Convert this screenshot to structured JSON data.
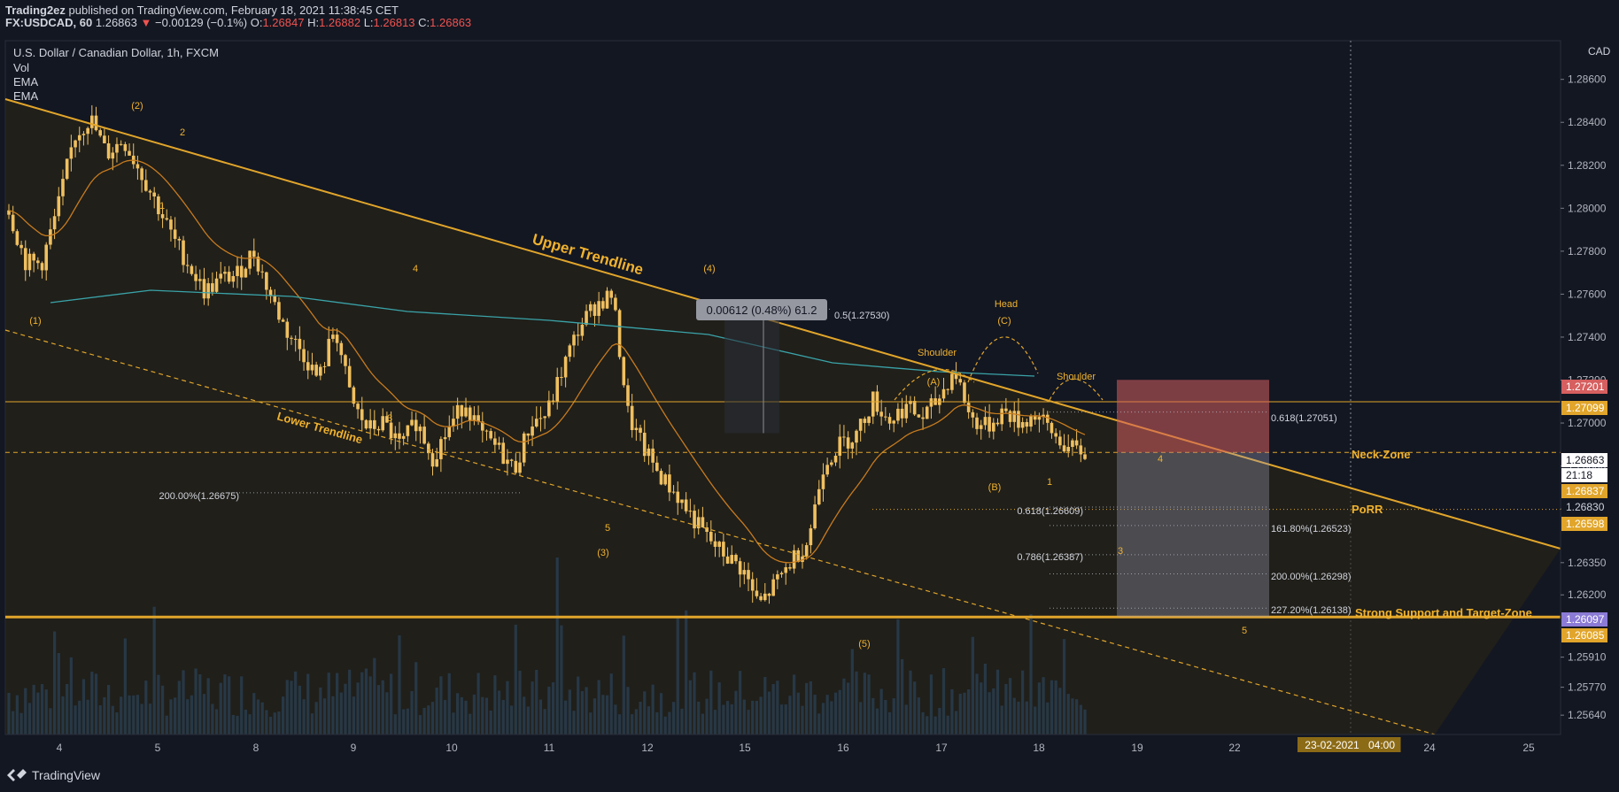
{
  "header": {
    "publisher": "Trading2ez",
    "published_text": "published on TradingView.com, February 18, 2021 11:38:45 CET",
    "symbol": "FX:USDCAD, 60",
    "last": "1.26863",
    "change": "−0.00129 (−0.1%)",
    "o_label": "O:",
    "o": "1.26847",
    "h_label": "H:",
    "h": "1.26882",
    "l_label": "L:",
    "l": "1.26813",
    "c_label": "C:",
    "c": "1.26863"
  },
  "legend": {
    "title": "U.S. Dollar / Canadian Dollar, 1h, FXCM",
    "items": [
      "Vol",
      "EMA",
      "EMA"
    ]
  },
  "footer": {
    "brand": "TradingView"
  },
  "colors": {
    "background": "#131722",
    "candle": "#f0c060",
    "trend": "#e1a52b",
    "ema_fast": "#c77b1e",
    "ema_slow": "#3aa3a8",
    "volume": "#2962a3",
    "risk": "#d65f5f",
    "reward": "#9e9eb8",
    "label_text": "#f0b22e"
  },
  "chart_data": {
    "type": "candlestick",
    "title": "U.S. Dollar / Canadian Dollar, 1h, FXCM",
    "currency": "CAD",
    "x_ticks": [
      "4",
      "5",
      "8",
      "9",
      "10",
      "11",
      "12",
      "15",
      "16",
      "17",
      "18",
      "19",
      "22",
      "23-02-2021",
      "04:00",
      "24",
      "25"
    ],
    "y_ticks": [
      "1.28600",
      "1.28400",
      "1.28200",
      "1.28000",
      "1.27800",
      "1.27600",
      "1.27400",
      "1.27200",
      "1.27000",
      "1.26800",
      "1.26600",
      "1.26350",
      "1.26200",
      "1.25910",
      "1.25770",
      "1.25640"
    ],
    "ylim": [
      1.2555,
      1.2878
    ],
    "price_path": [
      [
        0,
        1.2799
      ],
      [
        2,
        1.2775
      ],
      [
        4,
        1.2774
      ],
      [
        6,
        1.28
      ],
      [
        8,
        1.2833
      ],
      [
        10,
        1.2842
      ],
      [
        12,
        1.2825
      ],
      [
        14,
        1.2832
      ],
      [
        16,
        1.2818
      ],
      [
        18,
        1.2803
      ],
      [
        20,
        1.2787
      ],
      [
        22,
        1.2774
      ],
      [
        24,
        1.2761
      ],
      [
        26,
        1.2767
      ],
      [
        28,
        1.2769
      ],
      [
        30,
        1.278
      ],
      [
        32,
        1.276
      ],
      [
        34,
        1.2743
      ],
      [
        36,
        1.2733
      ],
      [
        38,
        1.272
      ],
      [
        40,
        1.2745
      ],
      [
        42,
        1.271
      ],
      [
        44,
        1.2697
      ],
      [
        46,
        1.27
      ],
      [
        48,
        1.2689
      ],
      [
        50,
        1.2701
      ],
      [
        52,
        1.2684
      ],
      [
        54,
        1.2698
      ],
      [
        56,
        1.271
      ],
      [
        58,
        1.2694
      ],
      [
        60,
        1.2688
      ],
      [
        62,
        1.2678
      ],
      [
        64,
        1.27
      ],
      [
        66,
        1.2704
      ],
      [
        68,
        1.2726
      ],
      [
        70,
        1.2745
      ],
      [
        72,
        1.2755
      ],
      [
        74,
        1.276
      ],
      [
        76,
        1.2703
      ],
      [
        78,
        1.2687
      ],
      [
        80,
        1.2675
      ],
      [
        82,
        1.2666
      ],
      [
        84,
        1.2655
      ],
      [
        86,
        1.2645
      ],
      [
        88,
        1.2638
      ],
      [
        90,
        1.2632
      ],
      [
        92,
        1.2615
      ],
      [
        94,
        1.2625
      ],
      [
        96,
        1.2636
      ],
      [
        98,
        1.2645
      ],
      [
        100,
        1.2682
      ],
      [
        102,
        1.269
      ],
      [
        104,
        1.2695
      ],
      [
        106,
        1.2711
      ],
      [
        108,
        1.2701
      ],
      [
        110,
        1.2708
      ],
      [
        112,
        1.2702
      ],
      [
        114,
        1.2711
      ],
      [
        116,
        1.2725
      ],
      [
        118,
        1.2702
      ],
      [
        120,
        1.2698
      ],
      [
        122,
        1.2706
      ],
      [
        124,
        1.27
      ],
      [
        126,
        1.2704
      ],
      [
        128,
        1.2695
      ],
      [
        130,
        1.2688
      ],
      [
        132,
        1.2686
      ]
    ],
    "price_range": {
      "high": 1.2844,
      "low": 1.2612
    },
    "last_price": 1.26863,
    "price_badges": [
      {
        "text": "1.27201",
        "value": 1.27201,
        "color": "#d65f5f"
      },
      {
        "text": "1.27099",
        "value": 1.27099,
        "color": "#e1a52b"
      },
      {
        "text": "1.26863",
        "value": 1.26863,
        "color": "#ffffff"
      },
      {
        "text": "21:18",
        "value": 1.2685,
        "color": "#ffffff"
      },
      {
        "text": "1.26837",
        "value": 1.26837,
        "color": "#e1a52b"
      },
      {
        "text": "1.26830",
        "value": 1.2683,
        "color": "#131722"
      },
      {
        "text": "1.26598",
        "value": 1.26598,
        "color": "#e1a52b"
      },
      {
        "text": "1.26097",
        "value": 1.26097,
        "color": "#8c7bd6"
      },
      {
        "text": "1.26085",
        "value": 1.26085,
        "color": "#e1a52b"
      }
    ],
    "horizontal_levels": [
      {
        "name": "Neck-Zone",
        "value": 1.26863,
        "style": "dashed"
      },
      {
        "name": "PoRR",
        "value": 1.26598,
        "style": "dotted"
      },
      {
        "name": "Strong Support and Target-Zone",
        "value": 1.26097,
        "style": "thick"
      },
      {
        "name": "",
        "value": 1.27099,
        "style": "solid"
      }
    ],
    "trendlines": [
      {
        "name": "Upper Trendline"
      },
      {
        "name": "Lower Trendline"
      }
    ],
    "annotations": [
      "(1)",
      "(2)",
      "2",
      "1",
      "4",
      "3",
      "(4)",
      "(3)",
      "5",
      "(5)",
      "Shoulder",
      "Head",
      "Shoulder",
      "(A)",
      "(B)",
      "(C)",
      "1",
      "4",
      "3",
      "5"
    ],
    "fibonacci": [
      "0.5(1.27530)",
      "0.618(1.27051)",
      "0.618(1.26609)",
      "0.786(1.26387)",
      "161.80%(1.26523)",
      "200.00%(1.26298)",
      "227.20%(1.26138)",
      "200.00%(1.26675)"
    ],
    "measure_label": "0.00612 (0.48%) 61.2",
    "position_tool": {
      "entry": 1.26863,
      "stop": 1.27201,
      "target": 1.26097
    }
  }
}
